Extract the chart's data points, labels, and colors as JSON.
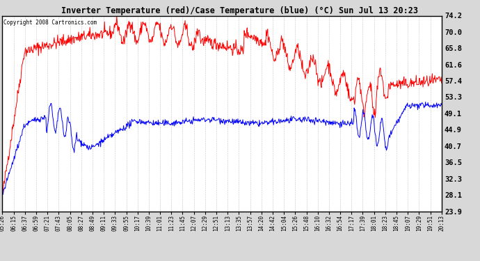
{
  "title": "Inverter Temperature (red)/Case Temperature (blue) (°C) Sun Jul 13 20:23",
  "copyright": "Copyright 2008 Cartronics.com",
  "y_ticks": [
    23.9,
    28.1,
    32.3,
    36.5,
    40.7,
    44.9,
    49.1,
    53.3,
    57.4,
    61.6,
    65.8,
    70.0,
    74.2
  ],
  "y_min": 23.9,
  "y_max": 74.2,
  "bg_color": "#d8d8d8",
  "plot_bg_color": "#ffffff",
  "red_color": "#ff0000",
  "blue_color": "#0000ff",
  "x_labels": [
    "05:26",
    "06:15",
    "06:37",
    "06:59",
    "07:21",
    "07:43",
    "08:05",
    "08:27",
    "08:49",
    "09:11",
    "09:33",
    "09:55",
    "10:17",
    "10:39",
    "11:01",
    "11:23",
    "11:45",
    "12:07",
    "12:29",
    "12:51",
    "13:13",
    "13:35",
    "13:57",
    "14:20",
    "14:42",
    "15:04",
    "15:26",
    "15:48",
    "16:10",
    "16:32",
    "16:54",
    "17:17",
    "17:39",
    "18:01",
    "18:23",
    "18:45",
    "19:07",
    "19:29",
    "19:51",
    "20:13"
  ]
}
